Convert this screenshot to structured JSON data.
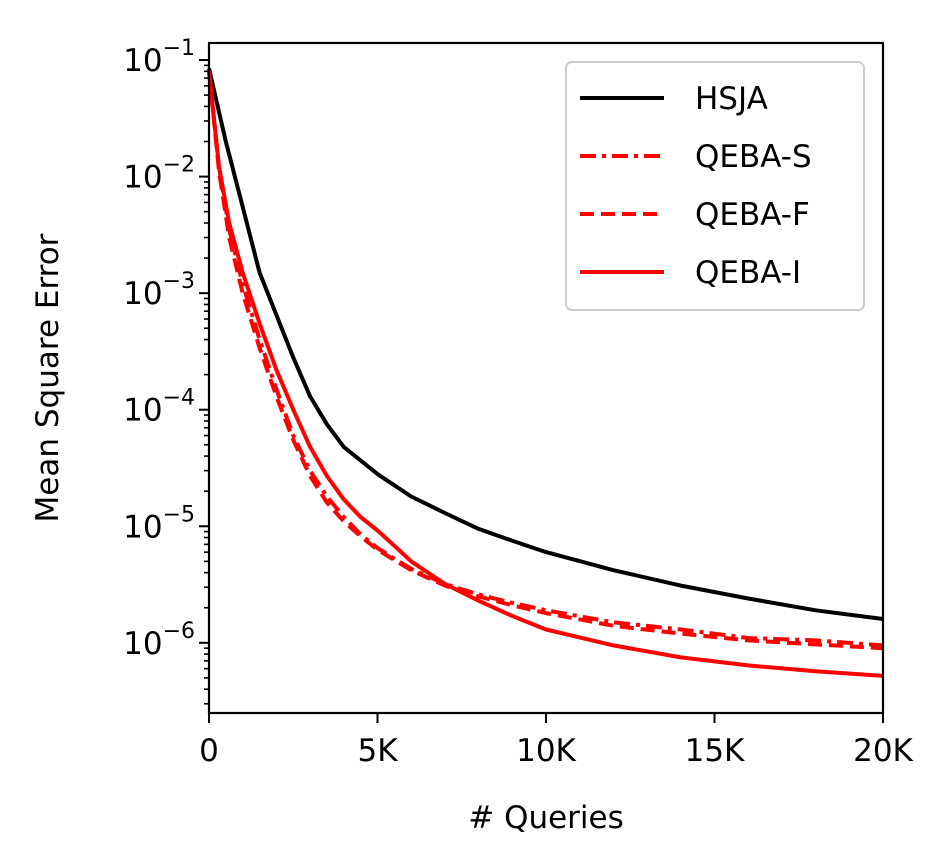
{
  "chart_data": {
    "type": "line",
    "title": "",
    "xlabel": "# Queries",
    "ylabel": "Mean Square Error",
    "xlim": [
      0,
      20000
    ],
    "ylim": [
      2.5e-07,
      0.14
    ],
    "yscale": "log",
    "grid": false,
    "legend_position": "top-right",
    "x_ticks": [
      {
        "value": 0,
        "label": "0"
      },
      {
        "value": 5000,
        "label": "5K"
      },
      {
        "value": 10000,
        "label": "10K"
      },
      {
        "value": 15000,
        "label": "15K"
      },
      {
        "value": 20000,
        "label": "20K"
      }
    ],
    "y_ticks": [
      {
        "value": 0.1,
        "base": "10",
        "exp": "−1"
      },
      {
        "value": 0.01,
        "base": "10",
        "exp": "−2"
      },
      {
        "value": 0.001,
        "base": "10",
        "exp": "−3"
      },
      {
        "value": 0.0001,
        "base": "10",
        "exp": "−4"
      },
      {
        "value": 1e-05,
        "base": "10",
        "exp": "−5"
      },
      {
        "value": 1e-06,
        "base": "10",
        "exp": "−6"
      }
    ],
    "series": [
      {
        "name": "HSJA",
        "color": "#000000",
        "style": "solid",
        "x": [
          0,
          500,
          1000,
          1500,
          2000,
          2500,
          3000,
          3500,
          4000,
          5000,
          6000,
          7000,
          8000,
          9000,
          10000,
          12000,
          14000,
          16000,
          18000,
          20000
        ],
        "y": [
          0.085,
          0.02,
          0.0055,
          0.0015,
          0.00065,
          0.00028,
          0.00013,
          7.5e-05,
          4.8e-05,
          2.8e-05,
          1.8e-05,
          1.3e-05,
          9.5e-06,
          7.5e-06,
          6e-06,
          4.2e-06,
          3.1e-06,
          2.4e-06,
          1.9e-06,
          1.6e-06
        ]
      },
      {
        "name": "QEBA-S",
        "color": "#ff0000",
        "style": "dashdot",
        "x": [
          0,
          300,
          600,
          1000,
          1500,
          2000,
          2500,
          3000,
          3500,
          4000,
          4500,
          5000,
          6000,
          7000,
          8000,
          9000,
          10000,
          12000,
          14000,
          16000,
          18000,
          20000
        ],
        "y": [
          0.08,
          0.012,
          0.0035,
          0.0012,
          0.0004,
          0.00015,
          6e-05,
          3e-05,
          1.8e-05,
          1.2e-05,
          8.5e-06,
          6.5e-06,
          4.3e-06,
          3.2e-06,
          2.6e-06,
          2.2e-06,
          1.9e-06,
          1.5e-06,
          1.3e-06,
          1.1e-06,
          1.05e-06,
          9.5e-07
        ]
      },
      {
        "name": "QEBA-F",
        "color": "#ff0000",
        "style": "dashed",
        "x": [
          0,
          300,
          600,
          1000,
          1500,
          2000,
          2500,
          3000,
          3500,
          4000,
          4500,
          5000,
          6000,
          7000,
          8000,
          9000,
          10000,
          12000,
          14000,
          16000,
          18000,
          20000
        ],
        "y": [
          0.08,
          0.011,
          0.003,
          0.001,
          0.00034,
          0.00013,
          5.5e-05,
          2.7e-05,
          1.6e-05,
          1.1e-05,
          8.2e-06,
          6.3e-06,
          4.2e-06,
          3.1e-06,
          2.5e-06,
          2.1e-06,
          1.8e-06,
          1.4e-06,
          1.2e-06,
          1.05e-06,
          9.7e-07,
          9e-07
        ]
      },
      {
        "name": "QEBA-I",
        "color": "#ff0000",
        "style": "solid",
        "x": [
          0,
          300,
          600,
          1000,
          1500,
          2000,
          2500,
          3000,
          3500,
          4000,
          4500,
          5000,
          5500,
          6000,
          7000,
          8000,
          9000,
          10000,
          12000,
          14000,
          16000,
          18000,
          20000
        ],
        "y": [
          0.08,
          0.012,
          0.004,
          0.0015,
          0.00055,
          0.00022,
          0.0001,
          4.8e-05,
          2.7e-05,
          1.7e-05,
          1.2e-05,
          9.2e-06,
          6.8e-06,
          5e-06,
          3.2e-06,
          2.3e-06,
          1.7e-06,
          1.3e-06,
          9.5e-07,
          7.5e-07,
          6.4e-07,
          5.7e-07,
          5.2e-07
        ]
      }
    ]
  }
}
